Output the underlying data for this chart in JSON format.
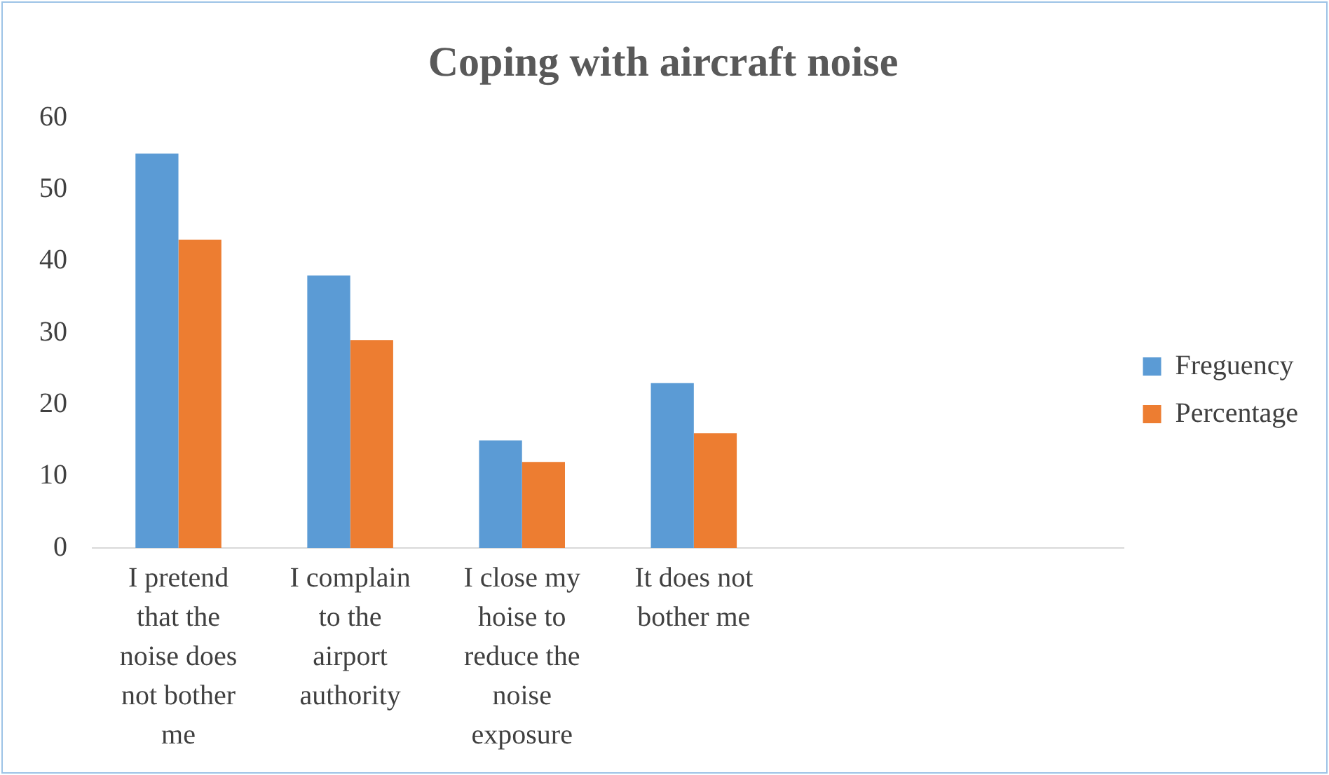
{
  "chart_data": {
    "type": "bar",
    "title": "Coping with aircraft noise",
    "categories": [
      "I pretend that the noise does not bother me",
      "I complain to the airport authority",
      "I close my hoise to reduce the noise exposure",
      "It does not bother me",
      null,
      null
    ],
    "series": [
      {
        "name": "Freguency",
        "color": "#5b9bd5",
        "values": [
          55,
          38,
          15,
          23,
          null,
          null
        ]
      },
      {
        "name": "Percentage",
        "color": "#ed7d31",
        "values": [
          43,
          29,
          12,
          16,
          null,
          null
        ]
      }
    ],
    "ylim": [
      0,
      60
    ],
    "yticks": [
      0,
      10,
      20,
      30,
      40,
      50,
      60
    ],
    "grid": false,
    "legend": "right"
  }
}
